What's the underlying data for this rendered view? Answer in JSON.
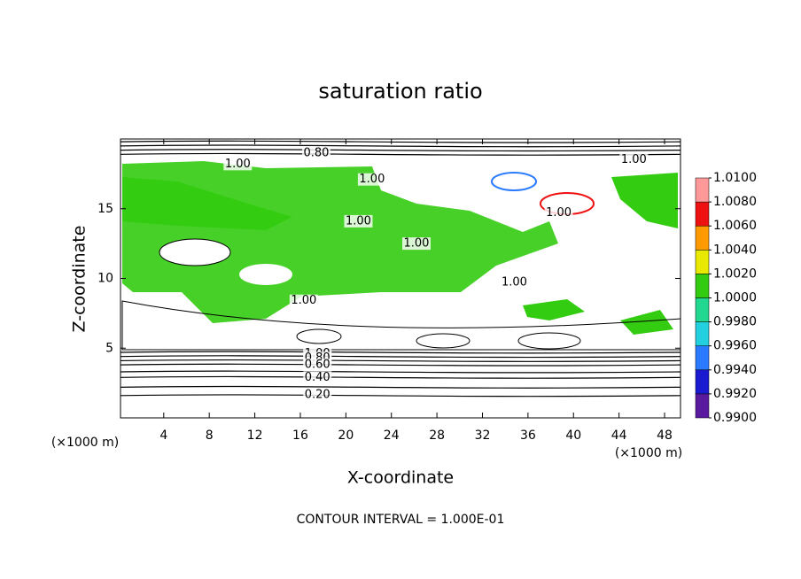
{
  "chart_data": {
    "type": "contour",
    "title": "saturation ratio",
    "x_label": "X-coordinate",
    "y_label": "Z-coordinate",
    "x_unit": "(×1000 m)",
    "y_unit": "(×1000 m)",
    "footnote": "CONTOUR INTERVAL = 1.000E-01",
    "xlim": [
      0.2,
      49.4
    ],
    "ylim": [
      0,
      20
    ],
    "xticks": [
      4,
      8,
      12,
      16,
      20,
      24,
      28,
      32,
      36,
      40,
      44,
      48
    ],
    "yticks": [
      5,
      10,
      15
    ],
    "contour_lines": [
      {
        "level": 0.2,
        "z": 1.6
      },
      {
        "level": 0.3,
        "z": 2.2
      },
      {
        "level": 0.4,
        "z": 2.9
      },
      {
        "level": 0.5,
        "z": 3.3
      },
      {
        "level": 0.6,
        "z": 3.8
      },
      {
        "level": 0.7,
        "z": 4.1
      },
      {
        "level": 0.8,
        "z": 4.4
      },
      {
        "level": 0.9,
        "z": 4.7
      },
      {
        "level": 0.8,
        "z": 18.9
      },
      {
        "level": 0.7,
        "z": 19.2
      },
      {
        "level": 0.6,
        "z": 19.5
      },
      {
        "level": 0.5,
        "z": 19.8
      }
    ],
    "annotations": [
      {
        "text": "0.80",
        "x": 17.4,
        "z": 19.0
      },
      {
        "text": "1.00",
        "x": 10.5,
        "z": 18.2
      },
      {
        "text": "1.00",
        "x": 22.3,
        "z": 17.1
      },
      {
        "text": "1.00",
        "x": 45.3,
        "z": 18.5
      },
      {
        "text": "1.00",
        "x": 38.7,
        "z": 14.7
      },
      {
        "text": "1.00",
        "x": 21.1,
        "z": 14.1
      },
      {
        "text": "1.00",
        "x": 26.2,
        "z": 12.5
      },
      {
        "text": "1.00",
        "x": 34.8,
        "z": 9.7
      },
      {
        "text": "1.00",
        "x": 16.3,
        "z": 8.4
      },
      {
        "text": "1.00",
        "x": 17.5,
        "z": 4.6
      },
      {
        "text": "0.80",
        "x": 17.5,
        "z": 4.3
      },
      {
        "text": "0.60",
        "x": 17.5,
        "z": 3.8
      },
      {
        "text": "0.40",
        "x": 17.5,
        "z": 2.9
      },
      {
        "text": "0.20",
        "x": 17.5,
        "z": 1.65
      }
    ],
    "colorbar": {
      "ticks": [
        {
          "value": 0.99,
          "label": "0.9900"
        },
        {
          "value": 0.992,
          "label": "0.9920"
        },
        {
          "value": 0.994,
          "label": "0.9940"
        },
        {
          "value": 0.996,
          "label": "0.9960"
        },
        {
          "value": 0.998,
          "label": "0.9980"
        },
        {
          "value": 1.0,
          "label": "1.0000"
        },
        {
          "value": 1.002,
          "label": "1.0020"
        },
        {
          "value": 1.004,
          "label": "1.0040"
        },
        {
          "value": 1.006,
          "label": "1.0060"
        },
        {
          "value": 1.008,
          "label": "1.0080"
        },
        {
          "value": 1.01,
          "label": "1.0100"
        }
      ],
      "colors": [
        "#5a1aa0",
        "#1a1ad0",
        "#2a7aff",
        "#22d0e0",
        "#22d890",
        "#33cc11",
        "#e8e800",
        "#ff9900",
        "#ee1111",
        "#ff9999"
      ]
    }
  }
}
